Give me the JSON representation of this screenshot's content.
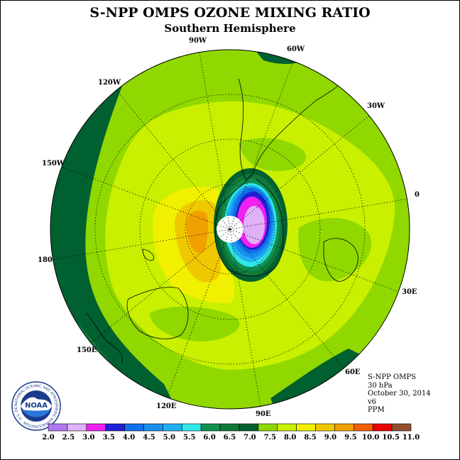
{
  "title": "S-NPP OMPS OZONE MIXING RATIO",
  "subtitle": "Southern Hemisphere",
  "longitude_labels": {
    "w90": "90W",
    "w60": "60W",
    "w120": "120W",
    "w30": "30W",
    "w150": "150W",
    "lon0": "0",
    "lon180": "180",
    "e30": "30E",
    "e150": "150E",
    "e60": "60E",
    "e120": "120E",
    "e90": "90E"
  },
  "info": {
    "instrument": "S-NPP OMPS",
    "level": "30 hPa",
    "date": "October 30, 2014",
    "version": "v6",
    "units": "PPM"
  },
  "colorbar": {
    "ticks": [
      "2.0",
      "2.5",
      "3.0",
      "3.5",
      "4.0",
      "4.5",
      "5.0",
      "5.5",
      "6.0",
      "6.5",
      "7.0",
      "7.5",
      "8.0",
      "8.5",
      "9.0",
      "9.5",
      "10.0",
      "10.5",
      "11.0"
    ],
    "colors": [
      "#b078f0",
      "#e0b0f8",
      "#f020f0",
      "#2020d8",
      "#1070e8",
      "#1890f0",
      "#20b0f0",
      "#30e8e8",
      "#109050",
      "#107838",
      "#006030",
      "#90d800",
      "#c8f000",
      "#f0f000",
      "#f0c800",
      "#f0a000",
      "#f06000",
      "#e80000",
      "#905030"
    ]
  },
  "logo_text": "NOAA",
  "logo_ring_text": "NATIONAL OCEANIC AND ATMOSPHERIC ADMINISTRATION · U.S. DEPARTMENT OF COMMERCE"
}
